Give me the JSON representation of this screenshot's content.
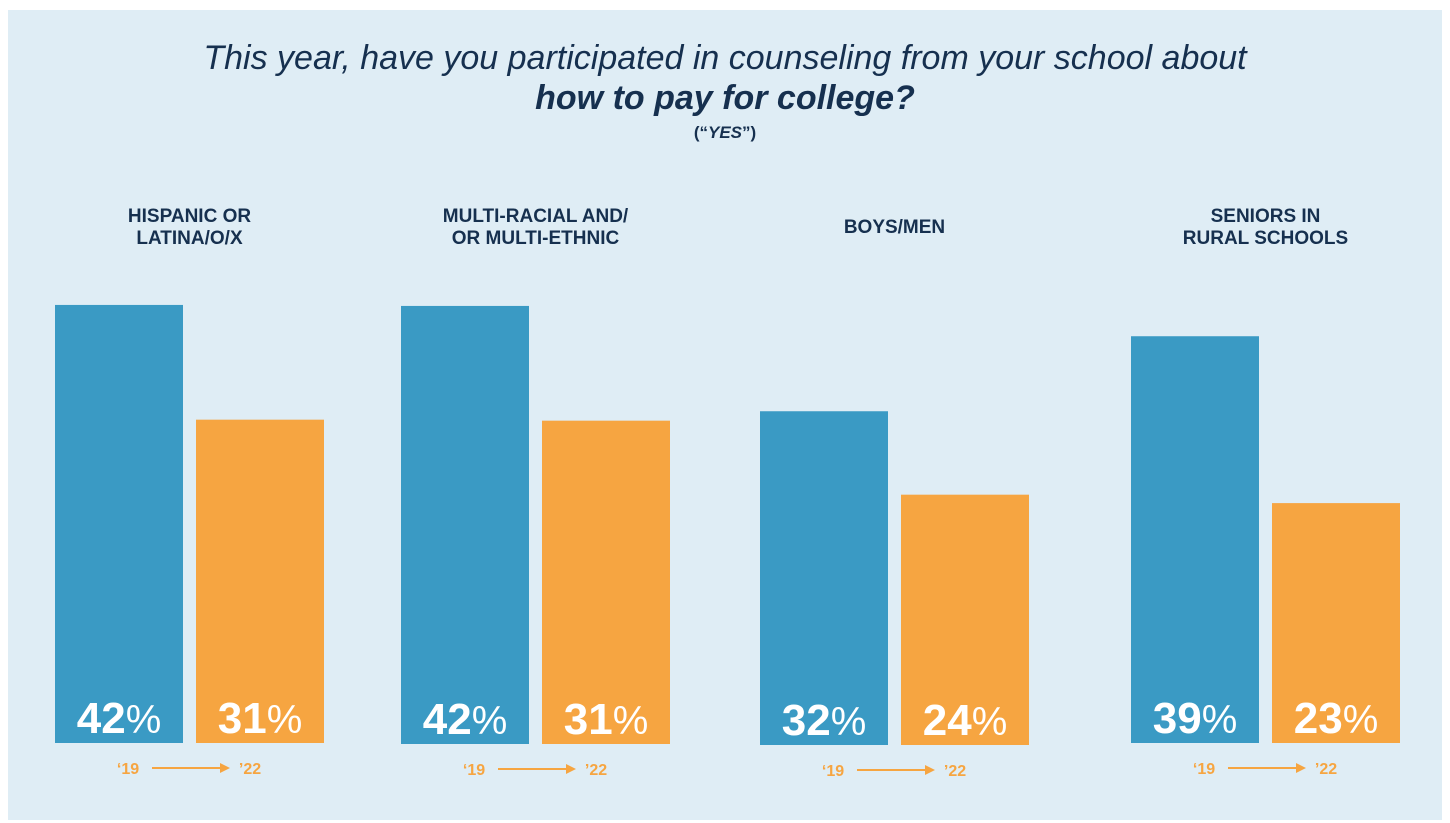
{
  "title": {
    "line1": "This year, have you participated in counseling from your school about",
    "line2": "how to pay for college?",
    "note_prefix": "(“",
    "note_word": "YES",
    "note_suffix": "”)"
  },
  "colors": {
    "bar_2019": "#3a9ac4",
    "bar_2022": "#f6a541",
    "axis_text": "#f6a541",
    "title": "#16304f",
    "background": "#dfedf5"
  },
  "chart_data": {
    "type": "bar",
    "unit": "%",
    "groups": [
      {
        "label_lines": [
          "HISPANIC OR",
          "LATINA/O/X"
        ],
        "values": [
          42,
          31
        ]
      },
      {
        "label_lines": [
          "MULTI-RACIAL AND/",
          "OR MULTI-ETHNIC"
        ],
        "values": [
          42,
          31
        ]
      },
      {
        "label_lines": [
          "BOYS/MEN"
        ],
        "values": [
          32,
          24
        ]
      },
      {
        "label_lines": [
          "SENIORS IN",
          "RURAL SCHOOLS"
        ],
        "values": [
          39,
          23
        ]
      }
    ],
    "years": [
      "‘19",
      "’22"
    ]
  }
}
